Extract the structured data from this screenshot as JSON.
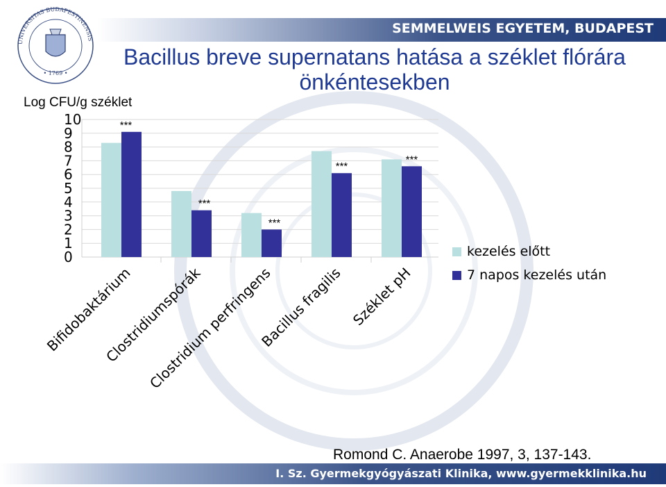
{
  "header": {
    "institution": "SEMMELWEIS EGYETEM, BUDAPEST",
    "seal_text": "UNIVERSITAS BUDAPESTINENSIS DE SEMMELWEIS NOMINATA"
  },
  "footer": {
    "clinic": "I. Sz. Gyermekgyógyászati Klinika, www.gyermekklinika.hu"
  },
  "citation": "Romond C. Anaerobe 1997, 3, 137-143.",
  "colors": {
    "before": "#b9dfe0",
    "after": "#313199",
    "title": "#1f3a93"
  },
  "chart_data": {
    "type": "bar",
    "title": "Bacillus breve supernatans hatása a széklet flórára önkéntesekben",
    "ylabel": "Log CFU/g széklet",
    "ylim": [
      0,
      10
    ],
    "yticks": [
      "0",
      "1",
      "2",
      "3",
      "4",
      "5",
      "6",
      "7",
      "8",
      "9",
      "10"
    ],
    "categories": [
      "Bifidobaktárium",
      "Clostridiumspórák",
      "Clostridium perfringens",
      "Bacillus fragilis",
      "Széklet pH"
    ],
    "series": [
      {
        "name": "kezelés előtt",
        "values": [
          8.3,
          4.8,
          3.2,
          7.7,
          7.1
        ]
      },
      {
        "name": "7 napos kezelés után",
        "values": [
          9.1,
          3.4,
          2.0,
          6.1,
          6.6
        ]
      }
    ],
    "annotations": [
      "***",
      "***",
      "***",
      "***",
      "***"
    ],
    "grid": true,
    "legend": "right"
  }
}
